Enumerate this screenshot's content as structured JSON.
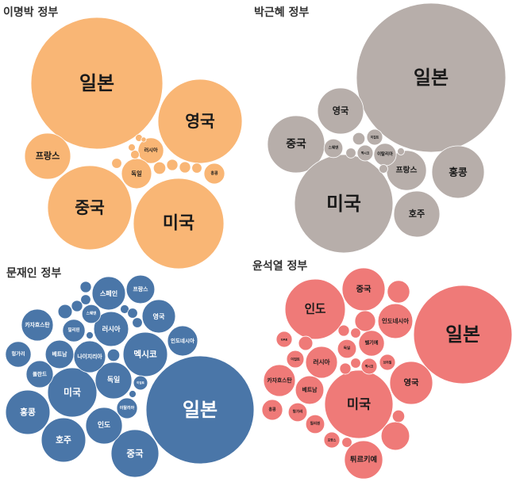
{
  "chart_data": [
    {
      "type": "bubble",
      "title": "이명박 정부",
      "color": "#F9B675",
      "label_color": "#1a1a1a",
      "bubbles": [
        {
          "label": "일본",
          "value": 689
        },
        {
          "label": "영국",
          "value": 281
        },
        {
          "label": "프랑스",
          "value": 84
        },
        {
          "label": "중국",
          "value": 281
        },
        {
          "label": "미국",
          "value": 325
        },
        {
          "label": "러시아",
          "value": 26
        },
        {
          "label": "독일",
          "value": 36
        },
        {
          "label": "홍콩",
          "value": 17
        },
        {
          "label": "",
          "value": 4
        },
        {
          "label": "",
          "value": 6
        },
        {
          "label": "",
          "value": 5
        },
        {
          "label": "",
          "value": 5
        },
        {
          "label": "",
          "value": 4
        },
        {
          "label": "",
          "value": 3
        },
        {
          "label": "",
          "value": 2
        },
        {
          "label": "",
          "value": 2
        },
        {
          "label": "",
          "value": 1
        }
      ]
    },
    {
      "type": "bubble",
      "title": "박근혜 정부",
      "color": "#B7AEAA",
      "label_color": "#1a1a1a",
      "bubbles": [
        {
          "label": "일본",
          "value": 884
        },
        {
          "label": "영국",
          "value": 84
        },
        {
          "label": "중국",
          "value": 130
        },
        {
          "label": "미국",
          "value": 384
        },
        {
          "label": "홍콩",
          "value": 109
        },
        {
          "label": "프랑스",
          "value": 63
        },
        {
          "label": "호주",
          "value": 84
        },
        {
          "label": "스웨덴",
          "value": 14
        },
        {
          "label": "멕시코",
          "value": 10
        },
        {
          "label": "이탈리아",
          "value": 20
        },
        {
          "label": "이집트",
          "value": 10
        },
        {
          "label": "",
          "value": 6
        },
        {
          "label": "",
          "value": 4
        },
        {
          "label": "",
          "value": 3
        },
        {
          "label": "",
          "value": 2
        }
      ]
    },
    {
      "type": "bubble",
      "title": "문재인 정부",
      "color": "#4A76A8",
      "label_color": "#ffffff",
      "bubbles": [
        {
          "label": "일본",
          "value": 462
        },
        {
          "label": "중국",
          "value": 90
        },
        {
          "label": "인도",
          "value": 53
        },
        {
          "label": "호주",
          "value": 78
        },
        {
          "label": "홍콩",
          "value": 78
        },
        {
          "label": "미국",
          "value": 96
        },
        {
          "label": "독일",
          "value": 53
        },
        {
          "label": "멕시코",
          "value": 78
        },
        {
          "label": "러시아",
          "value": 48
        },
        {
          "label": "영국",
          "value": 44
        },
        {
          "label": "인도네시아",
          "value": 36
        },
        {
          "label": "프랑스",
          "value": 32
        },
        {
          "label": "스페인",
          "value": 44
        },
        {
          "label": "카자흐스탄",
          "value": 40
        },
        {
          "label": "베트남",
          "value": 32
        },
        {
          "label": "나이지리아",
          "value": 40
        },
        {
          "label": "헝가리",
          "value": 26
        },
        {
          "label": "폴란드",
          "value": 29
        },
        {
          "label": "필리핀",
          "value": 20
        },
        {
          "label": "스웨덴",
          "value": 14
        },
        {
          "label": "이집트",
          "value": 8
        },
        {
          "label": "이탈리아",
          "value": 17
        },
        {
          "label": "",
          "value": 5
        },
        {
          "label": "",
          "value": 4
        },
        {
          "label": "",
          "value": 5
        },
        {
          "label": "",
          "value": 8
        },
        {
          "label": "",
          "value": 6
        },
        {
          "label": "",
          "value": 3
        },
        {
          "label": "",
          "value": 4
        },
        {
          "label": "",
          "value": 4
        },
        {
          "label": "",
          "value": 2
        },
        {
          "label": "",
          "value": 2
        }
      ]
    },
    {
      "type": "bubble",
      "title": "윤석열 정부",
      "color": "#EF7A78",
      "label_color": "#1a1a1a",
      "bubbles": [
        {
          "label": "일본",
          "value": 384
        },
        {
          "label": "인도",
          "value": 144
        },
        {
          "label": "중국",
          "value": 73
        },
        {
          "label": "인도네시아",
          "value": 48
        },
        {
          "label": "미국",
          "value": 185
        },
        {
          "label": "영국",
          "value": 73
        },
        {
          "label": "튀르키예",
          "value": 58
        },
        {
          "label": "러시아",
          "value": 40
        },
        {
          "label": "베트남",
          "value": 32
        },
        {
          "label": "카자흐스탄",
          "value": 40
        },
        {
          "label": "벨기에",
          "value": 26
        },
        {
          "label": "UAE",
          "value": 10
        },
        {
          "label": "이집트",
          "value": 12
        },
        {
          "label": "독일",
          "value": 14
        },
        {
          "label": "멕시코",
          "value": 10
        },
        {
          "label": "브라질",
          "value": 10
        },
        {
          "label": "홍콩",
          "value": 17
        },
        {
          "label": "헝가리",
          "value": 14
        },
        {
          "label": "필리핀",
          "value": 14
        },
        {
          "label": "프랑스",
          "value": 10
        },
        {
          "label": "",
          "value": 20
        },
        {
          "label": "",
          "value": 17
        },
        {
          "label": "",
          "value": 32
        },
        {
          "label": "",
          "value": 6
        },
        {
          "label": "",
          "value": 8
        },
        {
          "label": "",
          "value": 5
        },
        {
          "label": "",
          "value": 4
        },
        {
          "label": "",
          "value": 5
        },
        {
          "label": "",
          "value": 4
        },
        {
          "label": "",
          "value": 4
        }
      ]
    }
  ]
}
